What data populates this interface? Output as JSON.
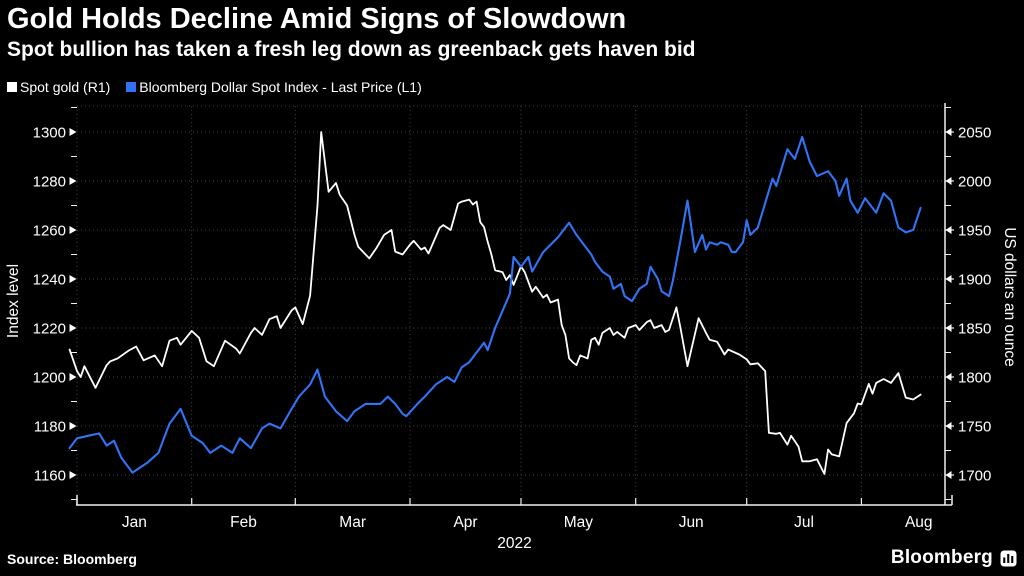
{
  "header": {
    "title": "Gold Holds Decline Amid Signs of Slowdown",
    "subtitle": "Spot bullion has taken a fresh leg down as greenback gets haven bid"
  },
  "source": {
    "text": "Source: Bloomberg"
  },
  "branding": {
    "logo_text": "Bloomberg",
    "logo_icon": "bloomberg-bars-icon"
  },
  "colors": {
    "background": "#000000",
    "gold_line": "#ffffff",
    "dollar_line": "#3273f5",
    "grid": "#404040",
    "axis": "#f0f0f0",
    "text": "#ffffff"
  },
  "chart_data": {
    "type": "line",
    "title": "Gold Holds Decline Amid Signs of Slowdown",
    "subtitle": "Spot bullion has taken a fresh leg down as greenback gets haven bid",
    "grid": "dotted",
    "legend_position": "top-left",
    "x_axis": {
      "year_label": "2022",
      "months": [
        "Jan",
        "Feb",
        "Mar",
        "Apr",
        "May",
        "Jun",
        "Jul",
        "Aug"
      ],
      "month_label_days": [
        15.5,
        45,
        74.5,
        105,
        135.5,
        166,
        196.5,
        227.5
      ],
      "month_start_days": [
        0,
        31,
        59,
        90,
        120,
        151,
        181,
        212
      ],
      "domain_days": [
        -2,
        234
      ]
    },
    "left_axis": {
      "title": "Index level",
      "range": [
        1160,
        1300
      ],
      "ticks": [
        1300,
        1280,
        1260,
        1240,
        1220,
        1200,
        1180,
        1160
      ],
      "minor_ticks": [
        1310,
        1290,
        1270,
        1250,
        1230,
        1210,
        1190,
        1170,
        1150
      ]
    },
    "right_axis": {
      "title": "US dollars an ounce",
      "range": [
        1700,
        2050
      ],
      "ticks": [
        2050,
        2000,
        1950,
        1900,
        1850,
        1800,
        1750,
        1700
      ],
      "minor_ticks": [
        2075,
        2025,
        1975,
        1925,
        1875,
        1825,
        1775,
        1725,
        1675
      ]
    },
    "series": [
      {
        "name": "Spot gold (R1)",
        "axis": "right",
        "color": "#ffffff",
        "units": "USD per ounce",
        "points": [
          [
            -2,
            1828
          ],
          [
            0,
            1806
          ],
          [
            1,
            1800
          ],
          [
            2,
            1811
          ],
          [
            5,
            1789
          ],
          [
            8,
            1812
          ],
          [
            9,
            1816
          ],
          [
            11,
            1819
          ],
          [
            14,
            1827
          ],
          [
            16,
            1831
          ],
          [
            18,
            1817
          ],
          [
            21,
            1822
          ],
          [
            23,
            1811
          ],
          [
            25,
            1837
          ],
          [
            27,
            1840
          ],
          [
            28,
            1833
          ],
          [
            31,
            1847
          ],
          [
            33,
            1840
          ],
          [
            35,
            1816
          ],
          [
            37,
            1811
          ],
          [
            40,
            1837
          ],
          [
            43,
            1829
          ],
          [
            44,
            1824
          ],
          [
            47,
            1845
          ],
          [
            48,
            1850
          ],
          [
            50,
            1843
          ],
          [
            52,
            1859
          ],
          [
            54,
            1862
          ],
          [
            55,
            1850
          ],
          [
            58,
            1868
          ],
          [
            59,
            1871
          ],
          [
            61,
            1854
          ],
          [
            63,
            1883
          ],
          [
            65,
            1975
          ],
          [
            66,
            2050
          ],
          [
            68,
            1989
          ],
          [
            70,
            1998
          ],
          [
            71,
            1986
          ],
          [
            73,
            1975
          ],
          [
            75,
            1945
          ],
          [
            76,
            1933
          ],
          [
            78,
            1925
          ],
          [
            79,
            1921
          ],
          [
            81,
            1932
          ],
          [
            83,
            1945
          ],
          [
            85,
            1950
          ],
          [
            86,
            1928
          ],
          [
            88,
            1925
          ],
          [
            90,
            1935
          ],
          [
            91,
            1939
          ],
          [
            93,
            1930
          ],
          [
            94,
            1932
          ],
          [
            95,
            1926
          ],
          [
            98,
            1952
          ],
          [
            99,
            1955
          ],
          [
            101,
            1950
          ],
          [
            103,
            1977
          ],
          [
            104,
            1979
          ],
          [
            106,
            1981
          ],
          [
            107,
            1976
          ],
          [
            108,
            1979
          ],
          [
            109,
            1958
          ],
          [
            110,
            1953
          ],
          [
            111,
            1938
          ],
          [
            112,
            1925
          ],
          [
            113,
            1909
          ],
          [
            115,
            1907
          ],
          [
            116,
            1899
          ],
          [
            117,
            1904
          ],
          [
            118,
            1894
          ],
          [
            120,
            1913
          ],
          [
            121,
            1907
          ],
          [
            122,
            1897
          ],
          [
            123,
            1887
          ],
          [
            124,
            1892
          ],
          [
            126,
            1881
          ],
          [
            127,
            1884
          ],
          [
            128,
            1876
          ],
          [
            130,
            1879
          ],
          [
            131,
            1853
          ],
          [
            132,
            1843
          ],
          [
            133,
            1819
          ],
          [
            134,
            1815
          ],
          [
            135,
            1812
          ],
          [
            136,
            1822
          ],
          [
            138,
            1819
          ],
          [
            139,
            1838
          ],
          [
            140,
            1840
          ],
          [
            141,
            1833
          ],
          [
            142,
            1845
          ],
          [
            144,
            1850
          ],
          [
            145,
            1843
          ],
          [
            146,
            1846
          ],
          [
            148,
            1840
          ],
          [
            149,
            1850
          ],
          [
            151,
            1853
          ],
          [
            152,
            1848
          ],
          [
            154,
            1856
          ],
          [
            155,
            1858
          ],
          [
            156,
            1850
          ],
          [
            158,
            1853
          ],
          [
            159,
            1846
          ],
          [
            160,
            1848
          ],
          [
            162,
            1871
          ],
          [
            163,
            1852
          ],
          [
            165,
            1811
          ],
          [
            168,
            1860
          ],
          [
            170,
            1845
          ],
          [
            171,
            1838
          ],
          [
            173,
            1836
          ],
          [
            175,
            1823
          ],
          [
            176,
            1828
          ],
          [
            179,
            1823
          ],
          [
            181,
            1818
          ],
          [
            182,
            1813
          ],
          [
            184,
            1814
          ],
          [
            186,
            1806
          ],
          [
            187,
            1743
          ],
          [
            189,
            1742
          ],
          [
            190,
            1743
          ],
          [
            192,
            1731
          ],
          [
            193,
            1740
          ],
          [
            195,
            1729
          ],
          [
            196,
            1714
          ],
          [
            198,
            1714
          ],
          [
            200,
            1716
          ],
          [
            202,
            1701
          ],
          [
            203,
            1726
          ],
          [
            204,
            1721
          ],
          [
            206,
            1719
          ],
          [
            208,
            1753
          ],
          [
            210,
            1763
          ],
          [
            211,
            1773
          ],
          [
            212,
            1772
          ],
          [
            214,
            1793
          ],
          [
            215,
            1783
          ],
          [
            216,
            1794
          ],
          [
            218,
            1798
          ],
          [
            219,
            1796
          ],
          [
            220,
            1794
          ],
          [
            222,
            1804
          ],
          [
            224,
            1779
          ],
          [
            226,
            1777
          ],
          [
            228,
            1782
          ]
        ]
      },
      {
        "name": "Bloomberg Dollar Spot Index - Last Price (L1)",
        "axis": "left",
        "color": "#3273f5",
        "units": "index points",
        "points": [
          [
            -2,
            1171
          ],
          [
            0,
            1175
          ],
          [
            3,
            1176
          ],
          [
            6,
            1177
          ],
          [
            8,
            1172
          ],
          [
            10,
            1174
          ],
          [
            12,
            1167
          ],
          [
            15,
            1161
          ],
          [
            19,
            1165
          ],
          [
            22,
            1169
          ],
          [
            25,
            1181
          ],
          [
            28,
            1187
          ],
          [
            31,
            1176
          ],
          [
            34,
            1173
          ],
          [
            36,
            1169
          ],
          [
            39,
            1172
          ],
          [
            42,
            1169
          ],
          [
            44,
            1175
          ],
          [
            47,
            1171
          ],
          [
            50,
            1179
          ],
          [
            52,
            1181
          ],
          [
            55,
            1179
          ],
          [
            58,
            1187
          ],
          [
            60,
            1192
          ],
          [
            63,
            1197
          ],
          [
            65,
            1203
          ],
          [
            67,
            1192
          ],
          [
            70,
            1186
          ],
          [
            73,
            1182
          ],
          [
            75,
            1186
          ],
          [
            78,
            1189
          ],
          [
            82,
            1189
          ],
          [
            84,
            1192
          ],
          [
            86,
            1189
          ],
          [
            88,
            1185
          ],
          [
            89,
            1184
          ],
          [
            92,
            1189
          ],
          [
            94,
            1192
          ],
          [
            97,
            1197
          ],
          [
            100,
            1200
          ],
          [
            102,
            1198
          ],
          [
            104,
            1204
          ],
          [
            106,
            1206
          ],
          [
            108,
            1210
          ],
          [
            110,
            1214
          ],
          [
            111,
            1211
          ],
          [
            113,
            1220
          ],
          [
            115,
            1227
          ],
          [
            117,
            1234
          ],
          [
            118,
            1249
          ],
          [
            120,
            1245
          ],
          [
            122,
            1249
          ],
          [
            123,
            1243
          ],
          [
            126,
            1251
          ],
          [
            128,
            1254
          ],
          [
            130,
            1257
          ],
          [
            133,
            1263
          ],
          [
            135,
            1258
          ],
          [
            137,
            1254
          ],
          [
            139,
            1250
          ],
          [
            140,
            1247
          ],
          [
            142,
            1243
          ],
          [
            144,
            1241
          ],
          [
            145,
            1236
          ],
          [
            147,
            1238
          ],
          [
            148,
            1233
          ],
          [
            150,
            1231
          ],
          [
            152,
            1236
          ],
          [
            154,
            1238
          ],
          [
            155,
            1245
          ],
          [
            157,
            1240
          ],
          [
            158,
            1235
          ],
          [
            160,
            1233
          ],
          [
            161,
            1239
          ],
          [
            163,
            1255
          ],
          [
            165,
            1272
          ],
          [
            167,
            1251
          ],
          [
            169,
            1258
          ],
          [
            170,
            1252
          ],
          [
            171,
            1255
          ],
          [
            173,
            1254
          ],
          [
            174,
            1255
          ],
          [
            176,
            1254
          ],
          [
            177,
            1251
          ],
          [
            178,
            1251
          ],
          [
            180,
            1255
          ],
          [
            181,
            1264
          ],
          [
            182,
            1258
          ],
          [
            184,
            1261
          ],
          [
            186,
            1271
          ],
          [
            188,
            1281
          ],
          [
            189,
            1278
          ],
          [
            192,
            1293
          ],
          [
            194,
            1289
          ],
          [
            196,
            1298
          ],
          [
            198,
            1288
          ],
          [
            200,
            1282
          ],
          [
            203,
            1284
          ],
          [
            205,
            1280
          ],
          [
            206,
            1274
          ],
          [
            208,
            1281
          ],
          [
            209,
            1272
          ],
          [
            211,
            1267
          ],
          [
            213,
            1273
          ],
          [
            216,
            1267
          ],
          [
            218,
            1275
          ],
          [
            220,
            1272
          ],
          [
            222,
            1261
          ],
          [
            224,
            1259
          ],
          [
            226,
            1260
          ],
          [
            228,
            1269
          ]
        ]
      }
    ]
  }
}
